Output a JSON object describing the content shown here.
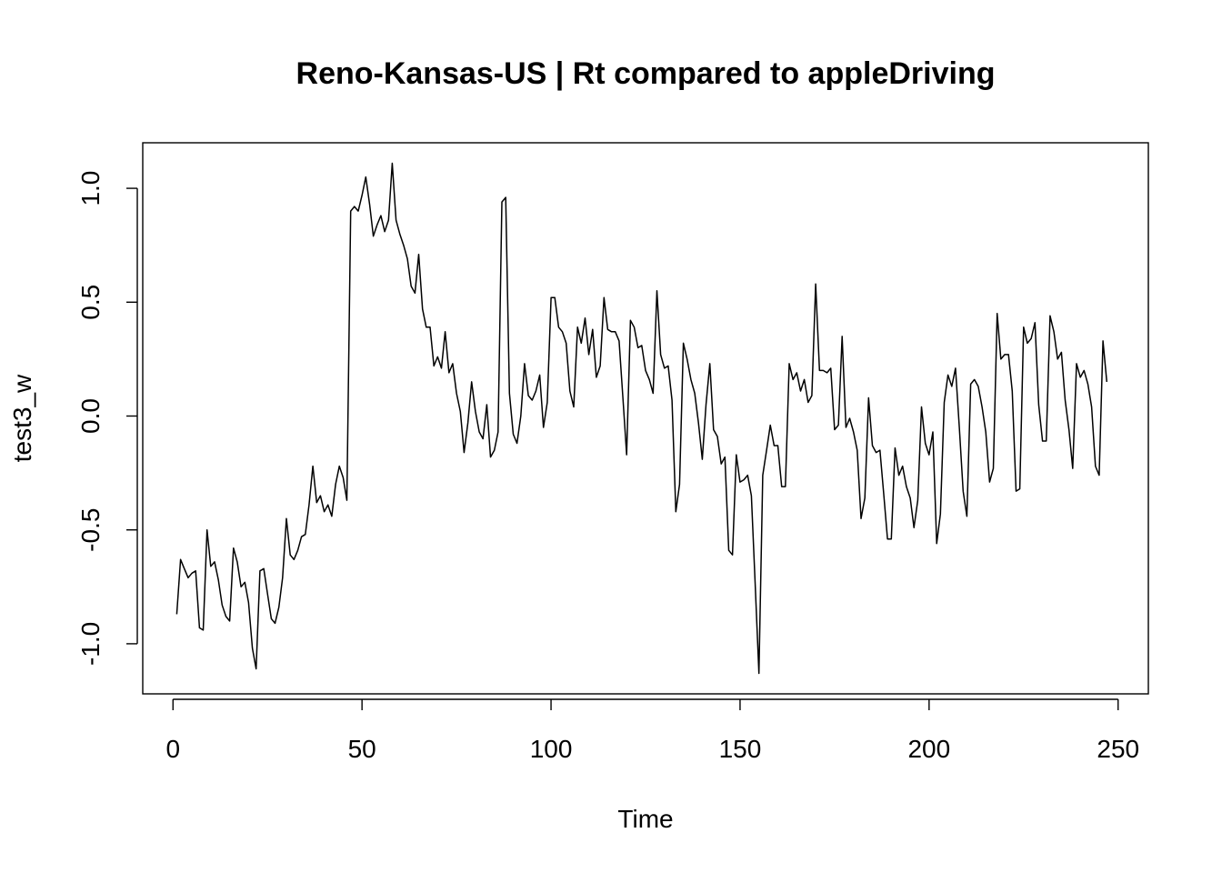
{
  "chart_data": {
    "type": "line",
    "title": "Reno-Kansas-US | Rt compared to appleDriving",
    "xlabel": "Time",
    "ylabel": "test3_w",
    "xlim": [
      -8,
      258
    ],
    "ylim": [
      -1.22,
      1.2
    ],
    "x_ticks": [
      0,
      50,
      100,
      150,
      200,
      250
    ],
    "x_tick_labels": [
      "0",
      "50",
      "100",
      "150",
      "200",
      "250"
    ],
    "y_ticks": [
      -1.0,
      -0.5,
      0.0,
      0.5,
      1.0
    ],
    "y_tick_labels": [
      "-1.0",
      "-0.5",
      "0.0",
      "0.5",
      "1.0"
    ],
    "grid": false,
    "legend": "none",
    "color": "#000000",
    "series": [
      {
        "x_start": 1,
        "values": [
          -0.87,
          -0.63,
          -0.67,
          -0.71,
          -0.69,
          -0.68,
          -0.93,
          -0.94,
          -0.5,
          -0.66,
          -0.64,
          -0.72,
          -0.83,
          -0.88,
          -0.9,
          -0.58,
          -0.64,
          -0.75,
          -0.73,
          -0.82,
          -1.02,
          -1.11,
          -0.68,
          -0.67,
          -0.78,
          -0.89,
          -0.91,
          -0.84,
          -0.71,
          -0.45,
          -0.61,
          -0.63,
          -0.59,
          -0.53,
          -0.52,
          -0.39,
          -0.22,
          -0.38,
          -0.35,
          -0.42,
          -0.39,
          -0.44,
          -0.3,
          -0.22,
          -0.27,
          -0.37,
          0.9,
          0.92,
          0.9,
          0.97,
          1.05,
          0.93,
          0.79,
          0.84,
          0.88,
          0.81,
          0.86,
          1.11,
          0.86,
          0.8,
          0.75,
          0.69,
          0.57,
          0.54,
          0.71,
          0.47,
          0.39,
          0.39,
          0.22,
          0.26,
          0.21,
          0.37,
          0.19,
          0.23,
          0.1,
          0.02,
          -0.16,
          -0.03,
          0.15,
          0.02,
          -0.07,
          -0.1,
          0.05,
          -0.18,
          -0.15,
          -0.07,
          0.94,
          0.96,
          0.1,
          -0.08,
          -0.12,
          0.0,
          0.23,
          0.09,
          0.07,
          0.11,
          0.18,
          -0.05,
          0.06,
          0.52,
          0.52,
          0.39,
          0.37,
          0.32,
          0.11,
          0.04,
          0.39,
          0.32,
          0.43,
          0.27,
          0.38,
          0.17,
          0.22,
          0.52,
          0.38,
          0.37,
          0.37,
          0.33,
          0.08,
          -0.17,
          0.42,
          0.39,
          0.3,
          0.31,
          0.2,
          0.16,
          0.1,
          0.55,
          0.27,
          0.21,
          0.22,
          0.07,
          -0.42,
          -0.3,
          0.32,
          0.25,
          0.16,
          0.1,
          -0.03,
          -0.19,
          0.05,
          0.23,
          -0.06,
          -0.09,
          -0.21,
          -0.18,
          -0.59,
          -0.61,
          -0.17,
          -0.29,
          -0.28,
          -0.26,
          -0.35,
          -0.74,
          -1.13,
          -0.26,
          -0.15,
          -0.04,
          -0.13,
          -0.13,
          -0.31,
          -0.31,
          0.23,
          0.16,
          0.19,
          0.11,
          0.16,
          0.06,
          0.09,
          0.58,
          0.2,
          0.2,
          0.19,
          0.21,
          -0.06,
          -0.04,
          0.35,
          -0.05,
          -0.01,
          -0.07,
          -0.15,
          -0.45,
          -0.36,
          0.08,
          -0.13,
          -0.16,
          -0.15,
          -0.34,
          -0.54,
          -0.54,
          -0.14,
          -0.26,
          -0.22,
          -0.31,
          -0.36,
          -0.49,
          -0.37,
          0.04,
          -0.12,
          -0.17,
          -0.07,
          -0.56,
          -0.43,
          0.06,
          0.18,
          0.13,
          0.21,
          -0.05,
          -0.33,
          -0.44,
          0.14,
          0.16,
          0.13,
          0.04,
          -0.07,
          -0.29,
          -0.23,
          0.45,
          0.25,
          0.27,
          0.27,
          0.11,
          -0.33,
          -0.32,
          0.39,
          0.32,
          0.34,
          0.41,
          0.05,
          -0.11,
          -0.11,
          0.44,
          0.37,
          0.25,
          0.28,
          0.07,
          -0.06,
          -0.23,
          0.23,
          0.17,
          0.2,
          0.14,
          0.04,
          -0.22,
          -0.26,
          0.33,
          0.15
        ]
      }
    ]
  }
}
